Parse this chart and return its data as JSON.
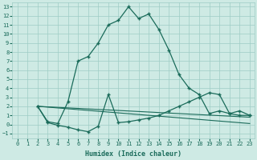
{
  "xlabel": "Humidex (Indice chaleur)",
  "background_color": "#ceeae4",
  "grid_color": "#9ecdc5",
  "line_color": "#1a6b5a",
  "xlim": [
    -0.5,
    23.5
  ],
  "ylim": [
    -1.5,
    13.5
  ],
  "xticks": [
    0,
    1,
    2,
    3,
    4,
    5,
    6,
    7,
    8,
    9,
    10,
    11,
    12,
    13,
    14,
    15,
    16,
    17,
    18,
    19,
    20,
    21,
    22,
    23
  ],
  "yticks": [
    -1,
    0,
    1,
    2,
    3,
    4,
    5,
    6,
    7,
    8,
    9,
    10,
    11,
    12,
    13
  ],
  "curve1_x": [
    2,
    3,
    4,
    5,
    6,
    7,
    8,
    9,
    10,
    11,
    12,
    13,
    14,
    15,
    16,
    17,
    18,
    19,
    20,
    21,
    22,
    23
  ],
  "curve1_y": [
    2.0,
    0.3,
    0.1,
    2.5,
    7.0,
    7.5,
    9.0,
    11.0,
    11.5,
    13.0,
    11.7,
    12.2,
    10.5,
    8.2,
    5.5,
    4.0,
    3.3,
    1.2,
    1.5,
    1.2,
    1.0,
    1.0
  ],
  "curve2_x": [
    2,
    3,
    4,
    5,
    6,
    7,
    8,
    9,
    10,
    11,
    12,
    13,
    14,
    15,
    16,
    17,
    18,
    19,
    20,
    21,
    22,
    23
  ],
  "curve2_y": [
    2.0,
    0.2,
    -0.1,
    -0.3,
    -0.6,
    -0.8,
    -0.2,
    3.3,
    0.2,
    0.3,
    0.5,
    0.7,
    1.0,
    1.5,
    2.0,
    2.5,
    3.0,
    3.5,
    3.3,
    1.2,
    1.5,
    1.0
  ],
  "line3_x": [
    2,
    23
  ],
  "line3_y": [
    2.0,
    0.8
  ],
  "line4_x": [
    2,
    23
  ],
  "line4_y": [
    2.0,
    0.1
  ]
}
